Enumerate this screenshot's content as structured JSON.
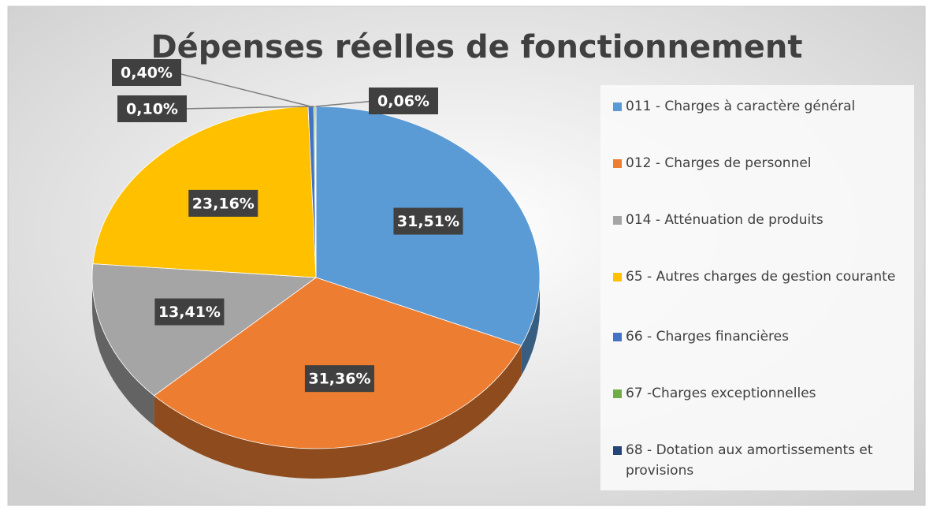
{
  "chart_data": {
    "type": "pie",
    "title": "Dépenses réelles de fonctionnement",
    "categories": [
      "011 - Charges à caractère général",
      "012 - Charges de personnel",
      "014 - Atténuation de produits",
      "65 - Autres charges de gestion courante",
      "66 - Charges financières",
      "67 -Charges exceptionnelles",
      "68 - Dotation aux amortissements et provisions"
    ],
    "values": [
      31.51,
      31.36,
      13.41,
      23.16,
      0.4,
      0.1,
      0.06
    ],
    "value_labels": [
      "31,51%",
      "31,36%",
      "13,41%",
      "23,16%",
      "0,40%",
      "0,10%",
      "0,06%"
    ],
    "colors": [
      "#5b9bd5",
      "#ed7d31",
      "#a5a5a5",
      "#ffc000",
      "#4472c4",
      "#70ad47",
      "#264478"
    ],
    "legend": "right"
  }
}
